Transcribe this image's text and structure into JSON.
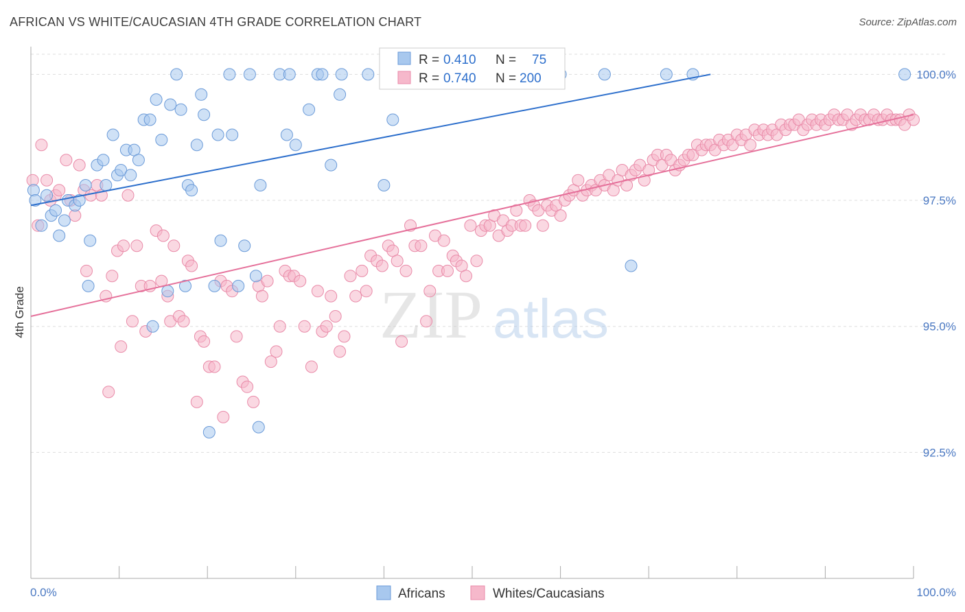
{
  "header": {
    "title": "AFRICAN VS WHITE/CAUCASIAN 4TH GRADE CORRELATION CHART",
    "source": "Source: ZipAtlas.com"
  },
  "watermark": {
    "zip": "ZIP",
    "atlas": "atlas"
  },
  "colors": {
    "africans_fill": "#a8c8ee",
    "africans_stroke": "#6a9ad8",
    "africans_line": "#2d6fcc",
    "whites_fill": "#f6b8cb",
    "whites_stroke": "#e98aa8",
    "whites_line": "#e5709a",
    "tick_label": "#4a78c2",
    "grid": "#dddddd"
  },
  "legend": {
    "rows": [
      {
        "r_label": "R =",
        "r_value": "0.410",
        "n_label": "N =",
        "n_value": "75",
        "series": "Africans"
      },
      {
        "r_label": "R =",
        "r_value": "0.740",
        "n_label": "N =",
        "n_value": "200",
        "series": "Whites/Caucasians"
      }
    ]
  },
  "chart_data": {
    "type": "scatter",
    "title": "AFRICAN VS WHITE/CAUCASIAN 4TH GRADE CORRELATION CHART",
    "xlabel": "",
    "ylabel": "4th Grade",
    "xlim": [
      0,
      100
    ],
    "ylim": [
      90.0,
      100.4
    ],
    "x_tick_labels": [
      "0.0%",
      "100.0%"
    ],
    "y_ticks": [
      92.5,
      95.0,
      97.5,
      100.0
    ],
    "y_tick_labels": [
      "92.5%",
      "95.0%",
      "97.5%",
      "100.0%"
    ],
    "grid": true,
    "legend_position": "top-center",
    "series": [
      {
        "name": "Africans",
        "trend": {
          "x": [
            0,
            77
          ],
          "y": [
            97.4,
            100.0
          ]
        },
        "points": [
          [
            0.3,
            97.7
          ],
          [
            0.5,
            97.5
          ],
          [
            1.2,
            97.0
          ],
          [
            1.8,
            97.6
          ],
          [
            2.3,
            97.2
          ],
          [
            2.8,
            97.3
          ],
          [
            3.2,
            96.8
          ],
          [
            3.8,
            97.1
          ],
          [
            4.2,
            97.5
          ],
          [
            5.0,
            97.4
          ],
          [
            5.5,
            97.5
          ],
          [
            6.2,
            97.8
          ],
          [
            6.5,
            95.8
          ],
          [
            6.7,
            96.7
          ],
          [
            7.5,
            98.2
          ],
          [
            8.2,
            98.3
          ],
          [
            8.5,
            97.8
          ],
          [
            9.3,
            98.8
          ],
          [
            9.8,
            98.0
          ],
          [
            10.2,
            98.1
          ],
          [
            10.8,
            98.5
          ],
          [
            11.3,
            98.0
          ],
          [
            11.7,
            98.5
          ],
          [
            12.2,
            98.3
          ],
          [
            12.8,
            99.1
          ],
          [
            13.5,
            99.1
          ],
          [
            13.8,
            95.0
          ],
          [
            14.2,
            99.5
          ],
          [
            14.8,
            98.7
          ],
          [
            15.5,
            95.7
          ],
          [
            15.8,
            99.4
          ],
          [
            16.5,
            100.0
          ],
          [
            17.0,
            99.3
          ],
          [
            17.5,
            95.8
          ],
          [
            17.8,
            97.8
          ],
          [
            18.2,
            97.7
          ],
          [
            18.8,
            98.6
          ],
          [
            19.3,
            99.6
          ],
          [
            19.6,
            99.2
          ],
          [
            20.2,
            92.9
          ],
          [
            20.8,
            95.8
          ],
          [
            21.2,
            98.8
          ],
          [
            21.5,
            96.7
          ],
          [
            22.5,
            100.0
          ],
          [
            22.8,
            98.8
          ],
          [
            23.5,
            95.8
          ],
          [
            24.2,
            96.6
          ],
          [
            24.8,
            100.0
          ],
          [
            25.5,
            96.0
          ],
          [
            25.8,
            93.0
          ],
          [
            26.0,
            97.8
          ],
          [
            28.2,
            100.0
          ],
          [
            29.0,
            98.8
          ],
          [
            29.3,
            100.0
          ],
          [
            30.0,
            98.6
          ],
          [
            31.5,
            99.3
          ],
          [
            32.5,
            100.0
          ],
          [
            33.0,
            100.0
          ],
          [
            34.0,
            98.2
          ],
          [
            35.0,
            99.6
          ],
          [
            35.2,
            100.0
          ],
          [
            38.2,
            100.0
          ],
          [
            40.0,
            97.8
          ],
          [
            41.0,
            99.1
          ],
          [
            41.8,
            100.0
          ],
          [
            43.0,
            100.0
          ],
          [
            47.0,
            100.0
          ],
          [
            50.0,
            100.0
          ],
          [
            52.0,
            100.0
          ],
          [
            55.0,
            100.0
          ],
          [
            60.0,
            100.0
          ],
          [
            65.0,
            100.0
          ],
          [
            68.0,
            96.2
          ],
          [
            72.0,
            100.0
          ],
          [
            75.0,
            100.0
          ],
          [
            99.0,
            100.0
          ]
        ]
      },
      {
        "name": "Whites/Caucasians",
        "trend": {
          "x": [
            0,
            100
          ],
          "y": [
            95.2,
            99.2
          ]
        },
        "points": [
          [
            0.2,
            97.9
          ],
          [
            0.8,
            97.0
          ],
          [
            1.2,
            98.6
          ],
          [
            1.8,
            97.9
          ],
          [
            2.2,
            97.5
          ],
          [
            2.8,
            97.6
          ],
          [
            3.2,
            97.7
          ],
          [
            4.0,
            98.3
          ],
          [
            4.5,
            97.5
          ],
          [
            5.0,
            97.2
          ],
          [
            5.5,
            98.2
          ],
          [
            6.0,
            97.7
          ],
          [
            6.3,
            96.1
          ],
          [
            6.8,
            97.6
          ],
          [
            7.5,
            97.8
          ],
          [
            8.0,
            97.6
          ],
          [
            8.5,
            95.6
          ],
          [
            8.8,
            93.7
          ],
          [
            9.2,
            96.0
          ],
          [
            9.8,
            96.5
          ],
          [
            10.2,
            94.6
          ],
          [
            10.5,
            96.6
          ],
          [
            11.0,
            97.6
          ],
          [
            11.5,
            95.1
          ],
          [
            12.0,
            96.6
          ],
          [
            12.5,
            95.8
          ],
          [
            13.0,
            94.9
          ],
          [
            13.5,
            95.8
          ],
          [
            14.2,
            96.9
          ],
          [
            14.8,
            95.9
          ],
          [
            15.0,
            96.8
          ],
          [
            15.5,
            95.6
          ],
          [
            15.8,
            95.1
          ],
          [
            16.2,
            96.6
          ],
          [
            16.8,
            95.2
          ],
          [
            17.3,
            95.1
          ],
          [
            17.8,
            96.3
          ],
          [
            18.2,
            96.2
          ],
          [
            18.8,
            93.5
          ],
          [
            19.2,
            94.8
          ],
          [
            19.6,
            94.7
          ],
          [
            20.2,
            94.2
          ],
          [
            20.8,
            94.2
          ],
          [
            21.5,
            95.9
          ],
          [
            21.8,
            93.2
          ],
          [
            22.2,
            95.8
          ],
          [
            22.8,
            95.7
          ],
          [
            23.3,
            94.8
          ],
          [
            24.0,
            93.9
          ],
          [
            24.5,
            93.8
          ],
          [
            25.2,
            93.5
          ],
          [
            25.8,
            95.8
          ],
          [
            26.2,
            95.6
          ],
          [
            26.8,
            95.9
          ],
          [
            27.2,
            94.3
          ],
          [
            27.8,
            94.5
          ],
          [
            28.2,
            95.0
          ],
          [
            28.8,
            96.1
          ],
          [
            29.3,
            96.0
          ],
          [
            29.8,
            96.0
          ],
          [
            30.5,
            95.9
          ],
          [
            31.0,
            95.0
          ],
          [
            31.8,
            94.2
          ],
          [
            32.5,
            95.7
          ],
          [
            33.0,
            94.9
          ],
          [
            33.5,
            95.0
          ],
          [
            34.0,
            95.6
          ],
          [
            34.5,
            95.2
          ],
          [
            35.0,
            94.5
          ],
          [
            35.5,
            94.8
          ],
          [
            36.2,
            96.0
          ],
          [
            36.8,
            95.6
          ],
          [
            37.5,
            96.1
          ],
          [
            38.0,
            95.7
          ],
          [
            38.5,
            96.4
          ],
          [
            39.2,
            96.3
          ],
          [
            39.8,
            96.2
          ],
          [
            40.5,
            96.6
          ],
          [
            41.0,
            96.5
          ],
          [
            41.5,
            96.3
          ],
          [
            42.0,
            94.7
          ],
          [
            42.5,
            96.1
          ],
          [
            43.0,
            97.0
          ],
          [
            43.5,
            96.6
          ],
          [
            44.2,
            96.6
          ],
          [
            44.8,
            95.1
          ],
          [
            45.2,
            95.7
          ],
          [
            45.8,
            96.8
          ],
          [
            46.2,
            96.1
          ],
          [
            46.8,
            96.7
          ],
          [
            47.2,
            96.1
          ],
          [
            47.8,
            96.4
          ],
          [
            48.2,
            96.3
          ],
          [
            48.8,
            96.2
          ],
          [
            49.3,
            96.0
          ],
          [
            49.8,
            97.0
          ],
          [
            50.5,
            96.3
          ],
          [
            51.0,
            96.9
          ],
          [
            51.5,
            97.0
          ],
          [
            52.0,
            97.0
          ],
          [
            52.5,
            97.2
          ],
          [
            53.0,
            96.8
          ],
          [
            53.5,
            97.1
          ],
          [
            54.0,
            96.9
          ],
          [
            54.5,
            97.0
          ],
          [
            55.0,
            97.3
          ],
          [
            55.5,
            97.0
          ],
          [
            56.0,
            97.0
          ],
          [
            56.5,
            97.5
          ],
          [
            57.0,
            97.4
          ],
          [
            57.5,
            97.3
          ],
          [
            58.0,
            97.0
          ],
          [
            58.5,
            97.4
          ],
          [
            59.0,
            97.3
          ],
          [
            59.5,
            97.4
          ],
          [
            60.0,
            97.2
          ],
          [
            60.5,
            97.5
          ],
          [
            61.0,
            97.6
          ],
          [
            61.5,
            97.7
          ],
          [
            62.0,
            97.9
          ],
          [
            62.5,
            97.6
          ],
          [
            63.0,
            97.7
          ],
          [
            63.5,
            97.8
          ],
          [
            64.0,
            97.7
          ],
          [
            64.5,
            97.9
          ],
          [
            65.0,
            97.8
          ],
          [
            65.5,
            98.0
          ],
          [
            66.0,
            97.7
          ],
          [
            66.5,
            97.9
          ],
          [
            67.0,
            98.1
          ],
          [
            67.5,
            97.8
          ],
          [
            68.0,
            98.0
          ],
          [
            68.5,
            98.1
          ],
          [
            69.0,
            98.2
          ],
          [
            69.5,
            97.9
          ],
          [
            70.0,
            98.1
          ],
          [
            70.5,
            98.3
          ],
          [
            71.0,
            98.4
          ],
          [
            71.5,
            98.2
          ],
          [
            72.0,
            98.4
          ],
          [
            72.5,
            98.3
          ],
          [
            73.0,
            98.1
          ],
          [
            73.5,
            98.2
          ],
          [
            74.0,
            98.3
          ],
          [
            74.5,
            98.4
          ],
          [
            75.0,
            98.4
          ],
          [
            75.5,
            98.6
          ],
          [
            76.0,
            98.5
          ],
          [
            76.5,
            98.6
          ],
          [
            77.0,
            98.6
          ],
          [
            77.5,
            98.5
          ],
          [
            78.0,
            98.7
          ],
          [
            78.5,
            98.6
          ],
          [
            79.0,
            98.7
          ],
          [
            79.5,
            98.6
          ],
          [
            80.0,
            98.8
          ],
          [
            80.5,
            98.7
          ],
          [
            81.0,
            98.8
          ],
          [
            81.5,
            98.6
          ],
          [
            82.0,
            98.9
          ],
          [
            82.5,
            98.8
          ],
          [
            83.0,
            98.9
          ],
          [
            83.5,
            98.8
          ],
          [
            84.0,
            98.9
          ],
          [
            84.5,
            98.8
          ],
          [
            85.0,
            99.0
          ],
          [
            85.5,
            98.9
          ],
          [
            86.0,
            99.0
          ],
          [
            86.5,
            99.0
          ],
          [
            87.0,
            99.1
          ],
          [
            87.5,
            98.9
          ],
          [
            88.0,
            99.0
          ],
          [
            88.5,
            99.1
          ],
          [
            89.0,
            99.0
          ],
          [
            89.5,
            99.1
          ],
          [
            90.0,
            99.0
          ],
          [
            90.5,
            99.1
          ],
          [
            91.0,
            99.2
          ],
          [
            91.5,
            99.1
          ],
          [
            92.0,
            99.1
          ],
          [
            92.5,
            99.2
          ],
          [
            93.0,
            99.0
          ],
          [
            93.5,
            99.1
          ],
          [
            94.0,
            99.2
          ],
          [
            94.5,
            99.1
          ],
          [
            95.0,
            99.1
          ],
          [
            95.5,
            99.2
          ],
          [
            96.0,
            99.1
          ],
          [
            96.5,
            99.1
          ],
          [
            97.0,
            99.2
          ],
          [
            97.5,
            99.1
          ],
          [
            98.0,
            99.1
          ],
          [
            98.5,
            99.1
          ],
          [
            99.0,
            99.0
          ],
          [
            99.5,
            99.2
          ],
          [
            100.0,
            99.1
          ]
        ]
      }
    ]
  }
}
